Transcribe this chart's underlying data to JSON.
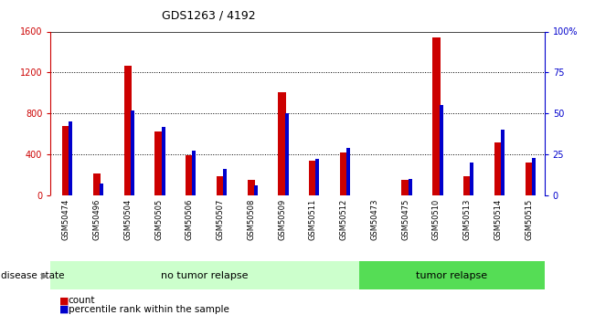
{
  "title": "GDS1263 / 4192",
  "samples": [
    "GSM50474",
    "GSM50496",
    "GSM50504",
    "GSM50505",
    "GSM50506",
    "GSM50507",
    "GSM50508",
    "GSM50509",
    "GSM50511",
    "GSM50512",
    "GSM50473",
    "GSM50475",
    "GSM50510",
    "GSM50513",
    "GSM50514",
    "GSM50515"
  ],
  "counts": [
    680,
    210,
    1270,
    620,
    390,
    190,
    155,
    1010,
    340,
    415,
    0,
    150,
    1540,
    190,
    520,
    320
  ],
  "percentiles": [
    45,
    7,
    52,
    42,
    27,
    16,
    6,
    50,
    22,
    29,
    0,
    10,
    55,
    20,
    40,
    23
  ],
  "no_tumor_samples": 10,
  "tumor_samples": 6,
  "count_color": "#cc0000",
  "percentile_color": "#0000cc",
  "no_tumor_bg": "#ccffcc",
  "tumor_bg": "#55dd55",
  "xtick_bg": "#cccccc",
  "ylim_left": [
    0,
    1600
  ],
  "ylim_right": [
    0,
    100
  ],
  "yticks_left": [
    0,
    400,
    800,
    1200,
    1600
  ],
  "yticks_right": [
    0,
    25,
    50,
    75,
    100
  ],
  "ytick_labels_right": [
    "0",
    "25",
    "50",
    "75",
    "100%"
  ]
}
